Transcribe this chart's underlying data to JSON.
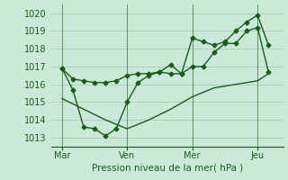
{
  "xlabel": "Pression niveau de la mer( hPa )",
  "ylim": [
    1012.5,
    1020.5
  ],
  "yticks": [
    1013,
    1014,
    1015,
    1016,
    1017,
    1018,
    1019,
    1020
  ],
  "xtick_labels": [
    "Mar",
    "Ven",
    "Mer",
    "Jeu"
  ],
  "xtick_positions": [
    0,
    3,
    6,
    9
  ],
  "vline_positions": [
    0,
    3,
    6,
    9
  ],
  "bg_color": "#cce8d8",
  "grid_color": "#aaccb8",
  "line_color": "#1a5c1a",
  "line_width": 1.0,
  "marker": "D",
  "marker_size": 2.5,
  "line1_x": [
    0,
    0.5,
    1,
    1.5,
    2,
    2.5,
    3,
    3.5,
    4,
    4.5,
    5,
    5.5,
    6,
    6.5,
    7,
    7.5,
    8,
    8.5,
    9,
    9.5
  ],
  "line1_y": [
    1016.9,
    1016.3,
    1016.2,
    1016.1,
    1016.1,
    1016.2,
    1016.5,
    1016.6,
    1016.6,
    1016.7,
    1016.6,
    1016.6,
    1017.0,
    1017.0,
    1017.8,
    1018.3,
    1018.3,
    1019.0,
    1019.2,
    1016.7
  ],
  "line2_x": [
    0,
    0.5,
    1,
    1.5,
    2,
    2.5,
    3,
    3.5,
    4,
    4.5,
    5,
    5.5,
    6,
    6.5,
    7,
    7.5,
    8,
    8.5,
    9,
    9.5
  ],
  "line2_y": [
    1016.9,
    1015.7,
    1013.6,
    1013.5,
    1013.1,
    1013.5,
    1015.0,
    1016.1,
    1016.5,
    1016.7,
    1017.1,
    1016.6,
    1018.6,
    1018.4,
    1018.2,
    1018.4,
    1019.0,
    1019.5,
    1019.9,
    1018.2
  ],
  "line3_x": [
    0,
    1,
    2,
    3,
    4,
    5,
    6,
    7,
    8,
    9,
    9.5
  ],
  "line3_y": [
    1015.2,
    1014.6,
    1014.0,
    1013.5,
    1014.0,
    1014.6,
    1015.3,
    1015.8,
    1016.0,
    1016.2,
    1016.6
  ]
}
